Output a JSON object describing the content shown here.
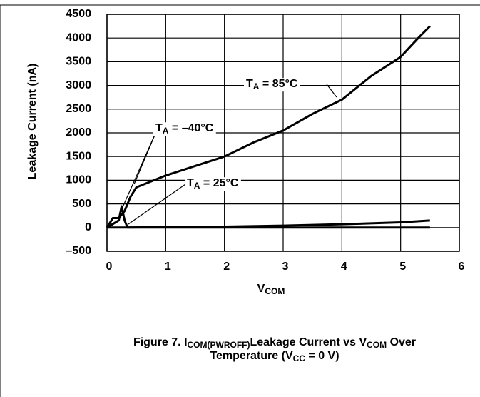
{
  "chart_data": {
    "type": "line",
    "title_lines": [
      [
        "Figure 7. I",
        "COM(PWROFF)",
        "Leakage Current vs V",
        "COM",
        " Over"
      ],
      [
        "Temperature (V",
        "CC",
        " = 0 V)"
      ]
    ],
    "x_label": [
      "V",
      "COM"
    ],
    "y_label": "Leakage Current (nA)",
    "xlim": [
      0,
      6
    ],
    "xticks": [
      0,
      1,
      2,
      3,
      4,
      5,
      6
    ],
    "ylim": [
      -500,
      4500
    ],
    "yticks": [
      {
        "value": -500,
        "label": "–500"
      },
      0,
      500,
      1000,
      1500,
      2000,
      2500,
      3000,
      3500,
      4000,
      4500
    ],
    "grid": true,
    "series": [
      {
        "name": [
          "T",
          "A",
          " = 85°C"
        ],
        "color": "#000000",
        "x": [
          0,
          0.1,
          0.2,
          0.3,
          0.4,
          0.5,
          0.6,
          0.8,
          1,
          1.5,
          2,
          2.5,
          3,
          3.5,
          4,
          4.5,
          5,
          5.3,
          5.5
        ],
        "values": [
          0,
          200,
          200,
          350,
          650,
          850,
          900,
          1000,
          1100,
          1300,
          1500,
          1800,
          2050,
          2400,
          2700,
          3200,
          3600,
          4000,
          4250
        ]
      },
      {
        "name": [
          "T",
          "A",
          " = –40°C"
        ],
        "color": "#000000",
        "x": [
          0,
          0.2,
          0.25,
          0.3,
          0.35,
          5.5
        ],
        "values": [
          0,
          150,
          450,
          150,
          0,
          0
        ]
      },
      {
        "name": [
          "T",
          "A",
          " = 25°C"
        ],
        "color": "#000000",
        "x": [
          0,
          0.3,
          1,
          2,
          3,
          4,
          5,
          5.5
        ],
        "values": [
          0,
          0,
          10,
          20,
          40,
          70,
          110,
          150
        ]
      }
    ]
  }
}
